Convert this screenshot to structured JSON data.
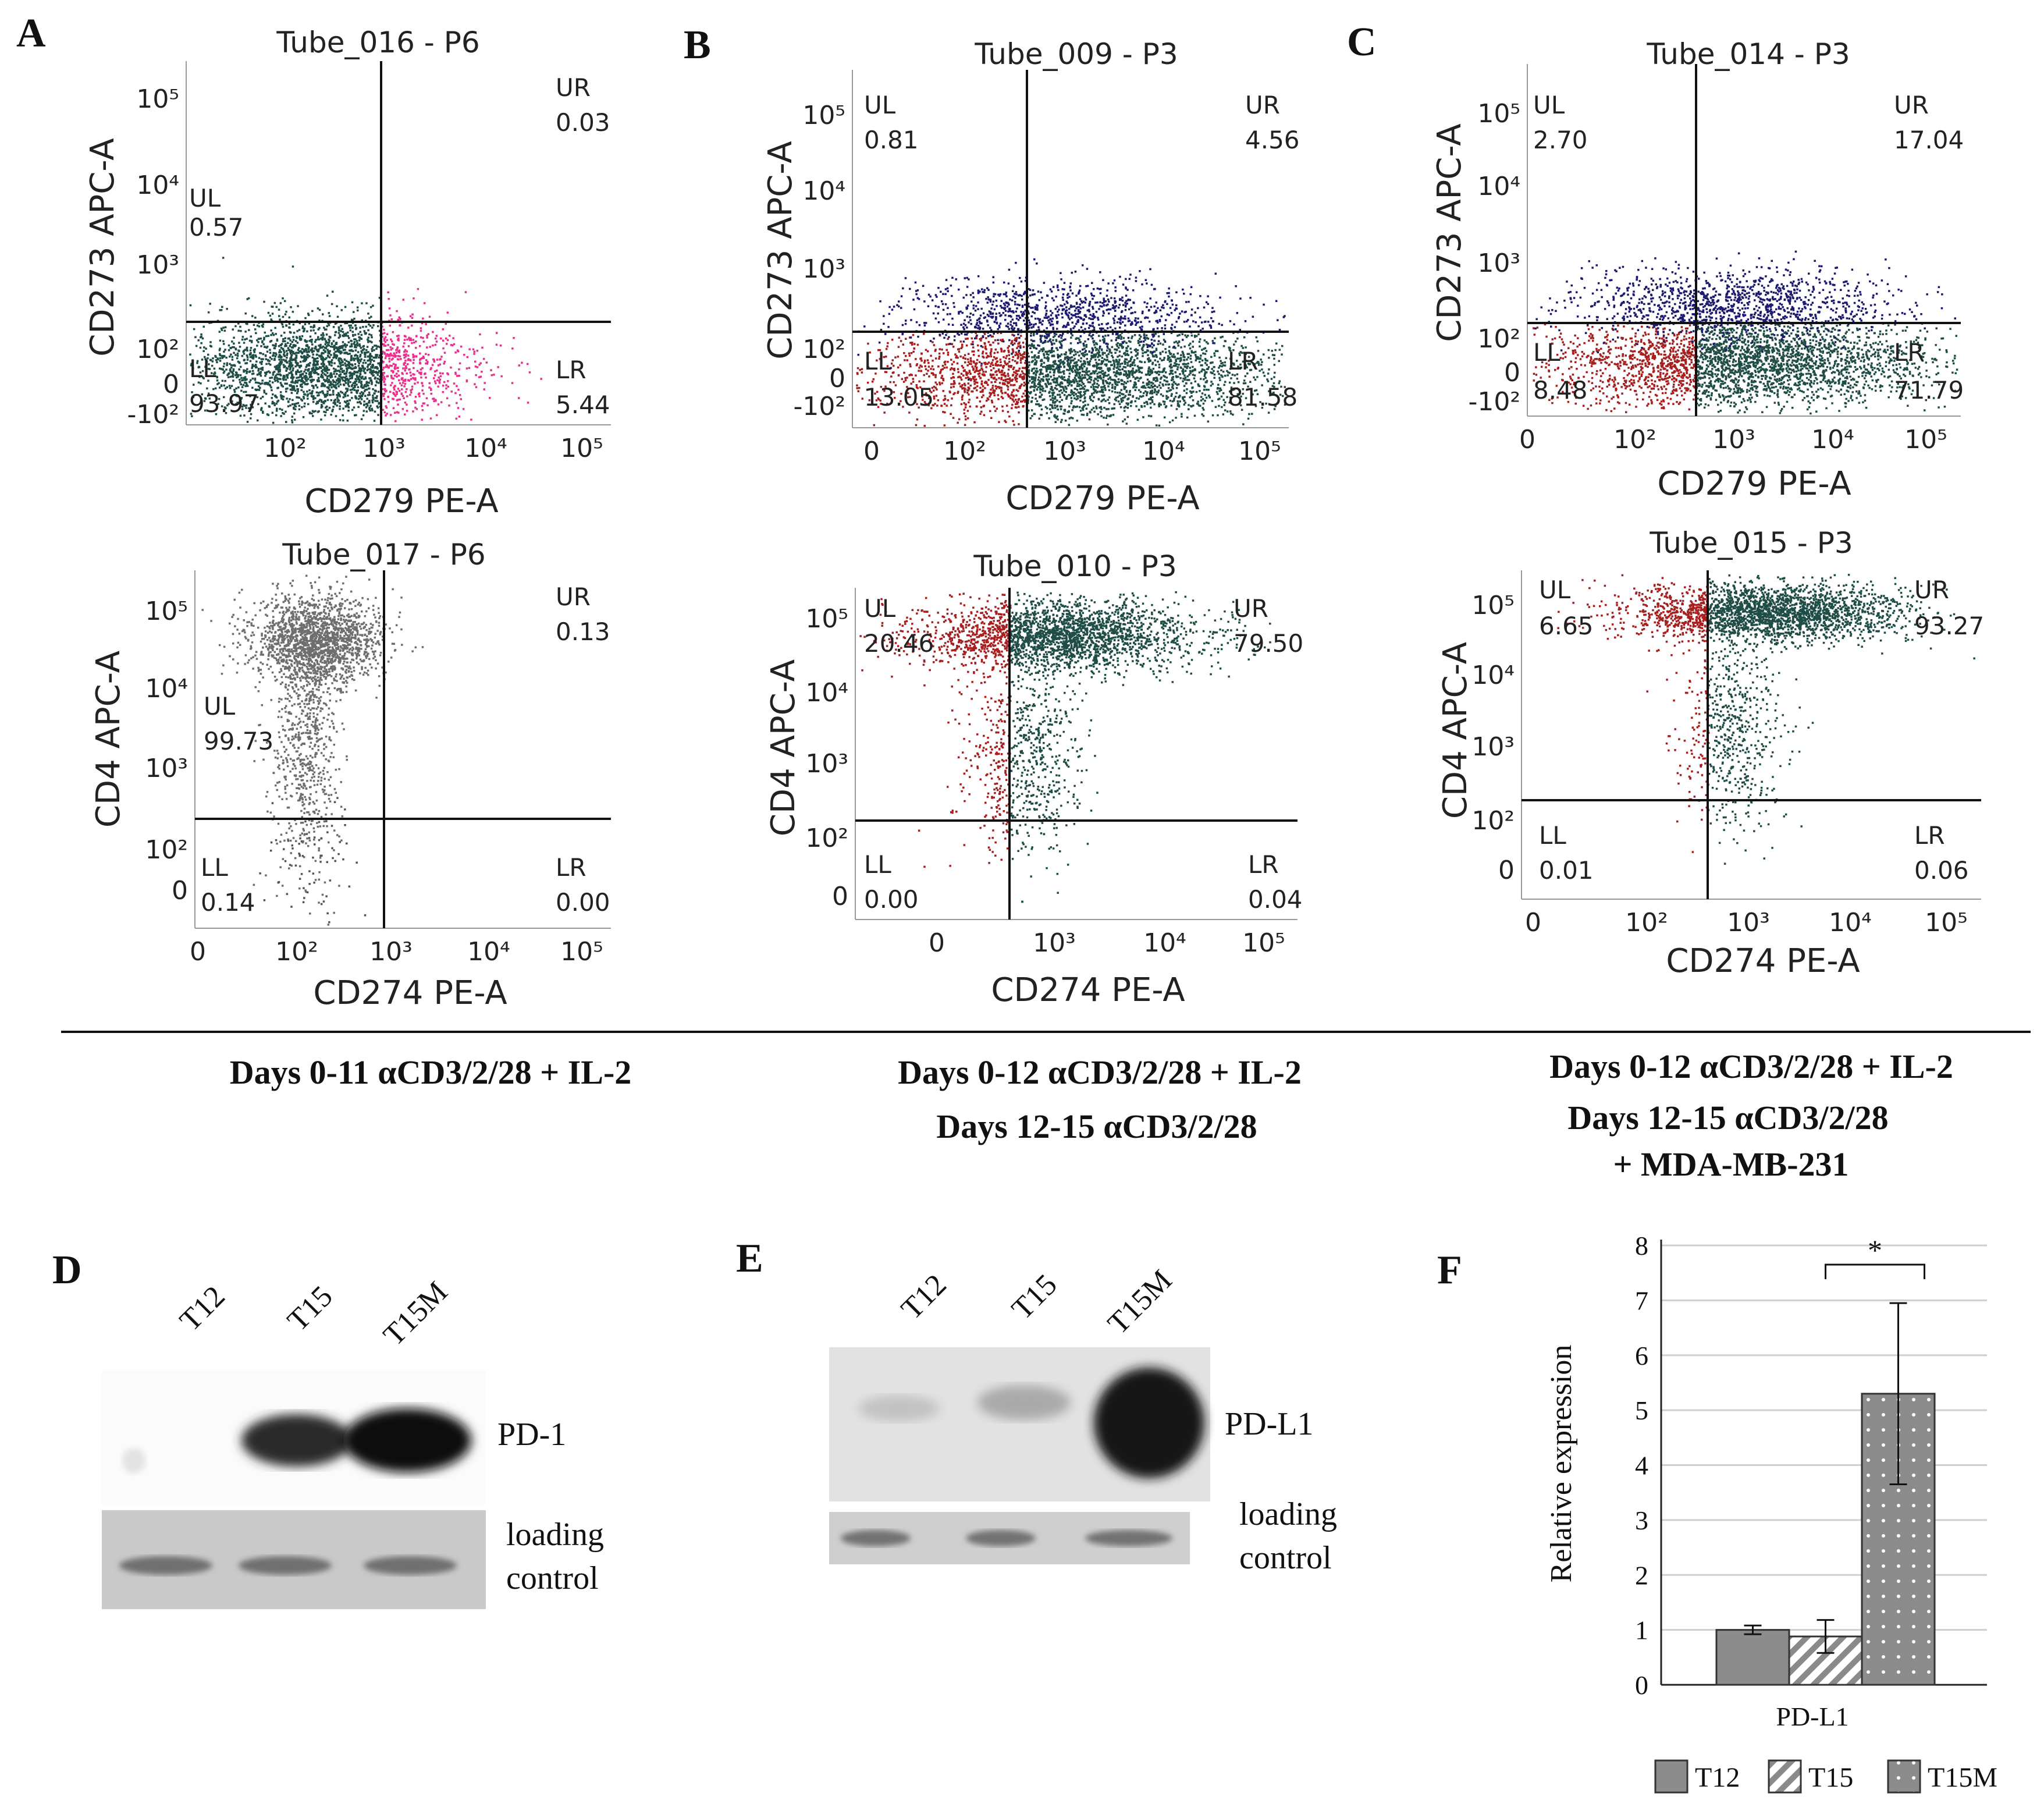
{
  "panel_letters": {
    "A": "A",
    "B": "B",
    "C": "C",
    "D": "D",
    "E": "E",
    "F": "F"
  },
  "colors": {
    "teal": "#1f4d46",
    "magenta": "#e8308c",
    "grey": "#6e6e6e",
    "red": "#a61e1e",
    "navy": "#1c1a6e",
    "axis": "#111111",
    "bar_fill": "#8c8c8c"
  },
  "conditions": {
    "A": [
      "Days 0-11  αCD3/2/28 + IL-2"
    ],
    "B": [
      "Days 0-12  αCD3/2/28 + IL-2",
      "Days 12-15   αCD3/2/28"
    ],
    "C": [
      "Days 0-12  αCD3/2/28 + IL-2",
      "Days 12-15   αCD3/2/28",
      "+ MDA-MB-231"
    ]
  },
  "plots": [
    {
      "id": "A1",
      "title": "Tube_016 - P6",
      "xlabel": "CD279 PE-A",
      "ylabel": "CD273 APC-A",
      "xticks": [
        "10²",
        "10³",
        "10⁴",
        "10⁵"
      ],
      "yticks": [
        "10⁵",
        "10⁴",
        "10³",
        "10²",
        "0",
        "-10²"
      ],
      "quadrants": {
        "UL": {
          "label": "UL",
          "value": "0.57"
        },
        "UR": {
          "label": "UR",
          "value": "0.03"
        },
        "LL": {
          "label": "LL",
          "value": "93.97"
        },
        "LR": {
          "label": "LR",
          "value": "5.44"
        }
      }
    },
    {
      "id": "A2",
      "title": "Tube_017 - P6",
      "xlabel": "CD274 PE-A",
      "ylabel": "CD4 APC-A",
      "xticks": [
        "0",
        "10²",
        "10³",
        "10⁴",
        "10⁵"
      ],
      "yticks": [
        "10⁵",
        "10⁴",
        "10³",
        "10²",
        "0"
      ],
      "quadrants": {
        "UL": {
          "label": "UL",
          "value": "99.73"
        },
        "UR": {
          "label": "UR",
          "value": "0.13"
        },
        "LL": {
          "label": "LL",
          "value": "0.14"
        },
        "LR": {
          "label": "LR",
          "value": "0.00"
        }
      }
    },
    {
      "id": "B1",
      "title": "Tube_009 - P3",
      "xlabel": "CD279 PE-A",
      "ylabel": "CD273 APC-A",
      "xticks": [
        "0",
        "10²",
        "10³",
        "10⁴",
        "10⁵"
      ],
      "yticks": [
        "10⁵",
        "10⁴",
        "10³",
        "10²",
        "0",
        "-10²"
      ],
      "quadrants": {
        "UL": {
          "label": "UL",
          "value": "0.81"
        },
        "UR": {
          "label": "UR",
          "value": "4.56"
        },
        "LL": {
          "label": "LL",
          "value": "13.05"
        },
        "LR": {
          "label": "LR",
          "value": "81.58"
        }
      }
    },
    {
      "id": "B2",
      "title": "Tube_010 - P3",
      "xlabel": "CD274 PE-A",
      "ylabel": "CD4 APC-A",
      "xticks": [
        "0",
        "10³",
        "10⁴",
        "10⁵"
      ],
      "yticks": [
        "10⁵",
        "10⁴",
        "10³",
        "10²",
        "0"
      ],
      "quadrants": {
        "UL": {
          "label": "UL",
          "value": "20.46"
        },
        "UR": {
          "label": "UR",
          "value": "79.50"
        },
        "LL": {
          "label": "LL",
          "value": "0.00"
        },
        "LR": {
          "label": "LR",
          "value": "0.04"
        }
      }
    },
    {
      "id": "C1",
      "title": "Tube_014 - P3",
      "xlabel": "CD279 PE-A",
      "ylabel": "CD273 APC-A",
      "xticks": [
        "0",
        "10²",
        "10³",
        "10⁴",
        "10⁵"
      ],
      "yticks": [
        "10⁵",
        "10⁴",
        "10³",
        "10²",
        "0",
        "-10²"
      ],
      "quadrants": {
        "UL": {
          "label": "UL",
          "value": "2.70"
        },
        "UR": {
          "label": "UR",
          "value": "17.04"
        },
        "LL": {
          "label": "LL",
          "value": "8.48"
        },
        "LR": {
          "label": "LR",
          "value": "71.79"
        }
      }
    },
    {
      "id": "C2",
      "title": "Tube_015 - P3",
      "xlabel": "CD274 PE-A",
      "ylabel": "CD4 APC-A",
      "xticks": [
        "0",
        "10²",
        "10³",
        "10⁴",
        "10⁵"
      ],
      "yticks": [
        "10⁵",
        "10⁴",
        "10³",
        "10²",
        "0"
      ],
      "quadrants": {
        "UL": {
          "label": "UL",
          "value": "6.65"
        },
        "UR": {
          "label": "UR",
          "value": "93.27"
        },
        "LL": {
          "label": "LL",
          "value": "0.01"
        },
        "LR": {
          "label": "LR",
          "value": "0.06"
        }
      }
    }
  ],
  "blot_D": {
    "lanes": [
      "T12",
      "T15",
      "T15M"
    ],
    "band_label": "PD-1",
    "loading_label": [
      "loading",
      "control"
    ]
  },
  "blot_E": {
    "lanes": [
      "T12",
      "T15",
      "T15M"
    ],
    "band_label": "PD-L1",
    "loading_label": [
      "loading",
      "control"
    ]
  },
  "chart_data": {
    "type": "bar",
    "title": "",
    "categories": [
      "PD-L1"
    ],
    "xlabel": "PD-L1",
    "ylabel": "Relative expression",
    "ylim": [
      0,
      8
    ],
    "yticks": [
      "0",
      "1",
      "2",
      "3",
      "4",
      "5",
      "6",
      "7",
      "8"
    ],
    "grid": true,
    "legend_position": "bottom",
    "series": [
      {
        "name": "T12",
        "values": [
          1.0
        ],
        "error": [
          0.08
        ],
        "pattern": "solid"
      },
      {
        "name": "T15",
        "values": [
          0.88
        ],
        "error": [
          0.3
        ],
        "pattern": "diagonal"
      },
      {
        "name": "T15M",
        "values": [
          5.3
        ],
        "error": [
          1.65
        ],
        "pattern": "dotted"
      }
    ],
    "annotations": [
      {
        "text": "*",
        "between": [
          "T15",
          "T15M"
        ]
      }
    ]
  }
}
